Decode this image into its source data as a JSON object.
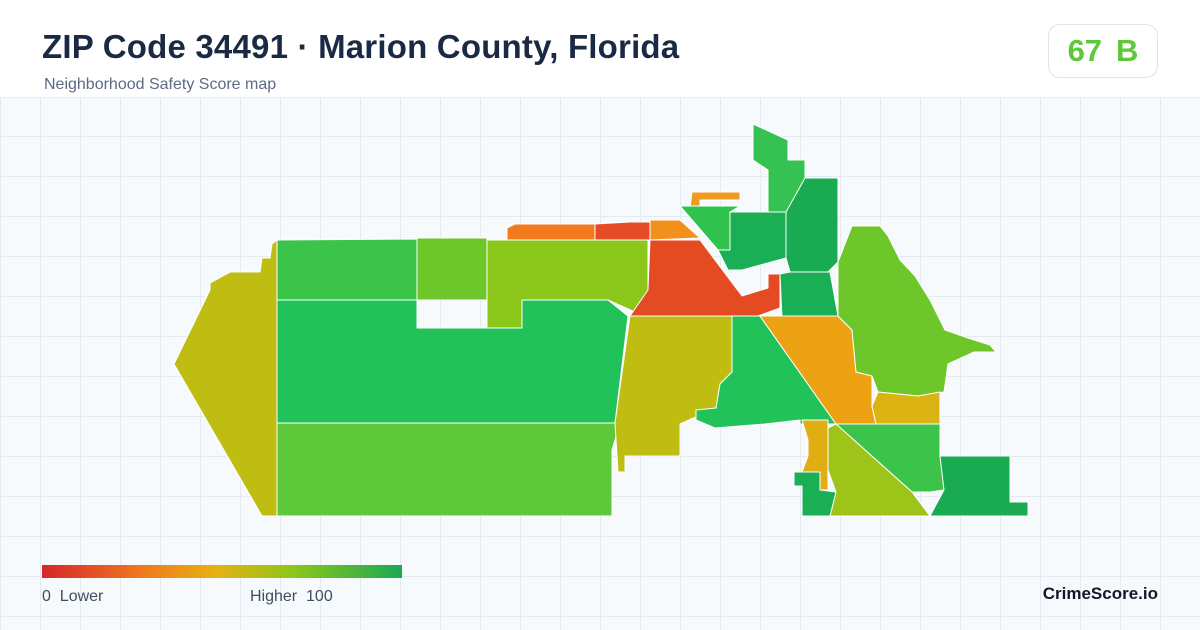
{
  "header": {
    "title": "ZIP Code 34491 · Marion County, Florida",
    "subtitle": "Neighborhood Safety Score map"
  },
  "score": {
    "value": "67",
    "grade": "B",
    "color": "#5cc83a"
  },
  "legend": {
    "min_label": "0",
    "min_text": "Lower",
    "max_text": "Higher",
    "max_label": "100",
    "colors": [
      "#d7262b",
      "#ef7a1f",
      "#e7b112",
      "#8cc61a",
      "#1aa954"
    ]
  },
  "brand": "CrimeScore.io",
  "map": {
    "regions": [
      {
        "id": "west-strip",
        "color": "#bfbd12"
      },
      {
        "id": "northwest",
        "color": "#3bc34a"
      },
      {
        "id": "north-central-1",
        "color": "#6dc62a"
      },
      {
        "id": "north-central-2",
        "color": "#8bc61a"
      },
      {
        "id": "central-west",
        "color": "#22c25a"
      },
      {
        "id": "south-west",
        "color": "#5cc83a"
      },
      {
        "id": "north-strip-1",
        "color": "#f37a1e"
      },
      {
        "id": "north-strip-2",
        "color": "#e54b26"
      },
      {
        "id": "north-strip-3",
        "color": "#f2901c"
      },
      {
        "id": "north-top-tip",
        "color": "#ef9a22"
      },
      {
        "id": "red-center",
        "color": "#e54b22"
      },
      {
        "id": "north-green-1",
        "color": "#32c24e"
      },
      {
        "id": "north-green-2",
        "color": "#1aaf55"
      },
      {
        "id": "north-tower",
        "color": "#35c253"
      },
      {
        "id": "north-tower-2",
        "color": "#1aab52"
      },
      {
        "id": "mid-green",
        "color": "#1aaf55"
      },
      {
        "id": "yellow-center",
        "color": "#bfbd12"
      },
      {
        "id": "central-green",
        "color": "#22c25a"
      },
      {
        "id": "orange-east",
        "color": "#eca212"
      },
      {
        "id": "east-big",
        "color": "#6dc62a"
      },
      {
        "id": "yellow-east-small",
        "color": "#dbb414"
      },
      {
        "id": "green-southeast",
        "color": "#3bc34a"
      },
      {
        "id": "lime-south",
        "color": "#9ec41a"
      },
      {
        "id": "orange-small-south",
        "color": "#e0ad12"
      },
      {
        "id": "green-south-small",
        "color": "#1aaf55"
      },
      {
        "id": "far-southeast",
        "color": "#1aab52"
      }
    ]
  }
}
